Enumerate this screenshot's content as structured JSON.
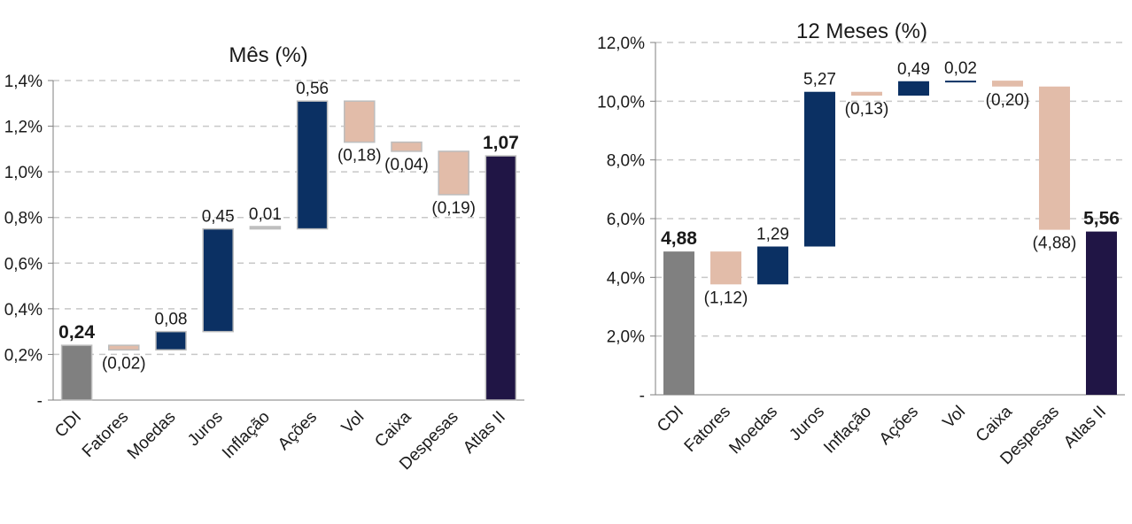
{
  "chart_data": [
    {
      "type": "waterfall",
      "title": "Mês (%)",
      "categories": [
        "CDI",
        "Fatores",
        "Moedas",
        "Juros",
        "Inflação",
        "Ações",
        "Vol",
        "Caixa",
        "Despesas",
        "Atlas II"
      ],
      "bars": [
        {
          "start": 0.0,
          "end": 0.24,
          "label": "0,24",
          "kind": "total"
        },
        {
          "start": 0.24,
          "end": 0.22,
          "label": "(0,02)",
          "kind": "neg"
        },
        {
          "start": 0.22,
          "end": 0.3,
          "label": "0,08",
          "kind": "pos"
        },
        {
          "start": 0.3,
          "end": 0.75,
          "label": "0,45",
          "kind": "pos"
        },
        {
          "start": 0.75,
          "end": 0.76,
          "label": "0,01",
          "kind": "pos_small"
        },
        {
          "start": 0.75,
          "end": 1.31,
          "label": "0,56",
          "kind": "pos"
        },
        {
          "start": 1.31,
          "end": 1.13,
          "label": "(0,18)",
          "kind": "neg"
        },
        {
          "start": 1.13,
          "end": 1.09,
          "label": "(0,04)",
          "kind": "neg"
        },
        {
          "start": 1.09,
          "end": 0.9,
          "label": "(0,19)",
          "kind": "neg"
        },
        {
          "start": 0.0,
          "end": 1.07,
          "label": "1,07",
          "kind": "final"
        }
      ],
      "yticks": [
        0,
        0.2,
        0.4,
        0.6,
        0.8,
        1.0,
        1.2,
        1.4
      ],
      "ytick_labels": [
        "-",
        "0,2%",
        "0,4%",
        "0,6%",
        "0,8%",
        "1,0%",
        "1,2%",
        "1,4%"
      ],
      "ylim": [
        0,
        1.4
      ],
      "grid": true
    },
    {
      "type": "waterfall",
      "title": "12 Meses (%)",
      "categories": [
        "CDI",
        "Fatores",
        "Moedas",
        "Juros",
        "Inflação",
        "Ações",
        "Vol",
        "Caixa",
        "Despesas",
        "Atlas II"
      ],
      "bars": [
        {
          "start": 0.0,
          "end": 4.88,
          "label": "4,88",
          "kind": "total"
        },
        {
          "start": 4.88,
          "end": 3.76,
          "label": "(1,12)",
          "kind": "neg"
        },
        {
          "start": 3.76,
          "end": 5.05,
          "label": "1,29",
          "kind": "pos"
        },
        {
          "start": 5.05,
          "end": 10.32,
          "label": "5,27",
          "kind": "pos"
        },
        {
          "start": 10.32,
          "end": 10.19,
          "label": "(0,13)",
          "kind": "neg"
        },
        {
          "start": 10.19,
          "end": 10.68,
          "label": "0,49",
          "kind": "pos"
        },
        {
          "start": 10.68,
          "end": 10.7,
          "label": "0,02",
          "kind": "pos"
        },
        {
          "start": 10.7,
          "end": 10.5,
          "label": "(0,20)",
          "kind": "neg"
        },
        {
          "start": 10.5,
          "end": 5.62,
          "label": "(4,88)",
          "kind": "neg"
        },
        {
          "start": 0.0,
          "end": 5.56,
          "label": "5,56",
          "kind": "final"
        }
      ],
      "yticks": [
        0,
        2,
        4,
        6,
        8,
        10,
        12
      ],
      "ytick_labels": [
        "-",
        "2,0%",
        "4,0%",
        "6,0%",
        "8,0%",
        "10,0%",
        "12,0%"
      ],
      "ylim": [
        0,
        12
      ],
      "grid": true
    }
  ],
  "colors": {
    "total": "#808080",
    "neg": "#e2bca9",
    "pos": "#0b3063",
    "pos_small": "#c0c0c0",
    "final": "#201545",
    "grid": "#c8c8c8",
    "axis": "#7f7f7f",
    "text": "#1a1a1a"
  }
}
